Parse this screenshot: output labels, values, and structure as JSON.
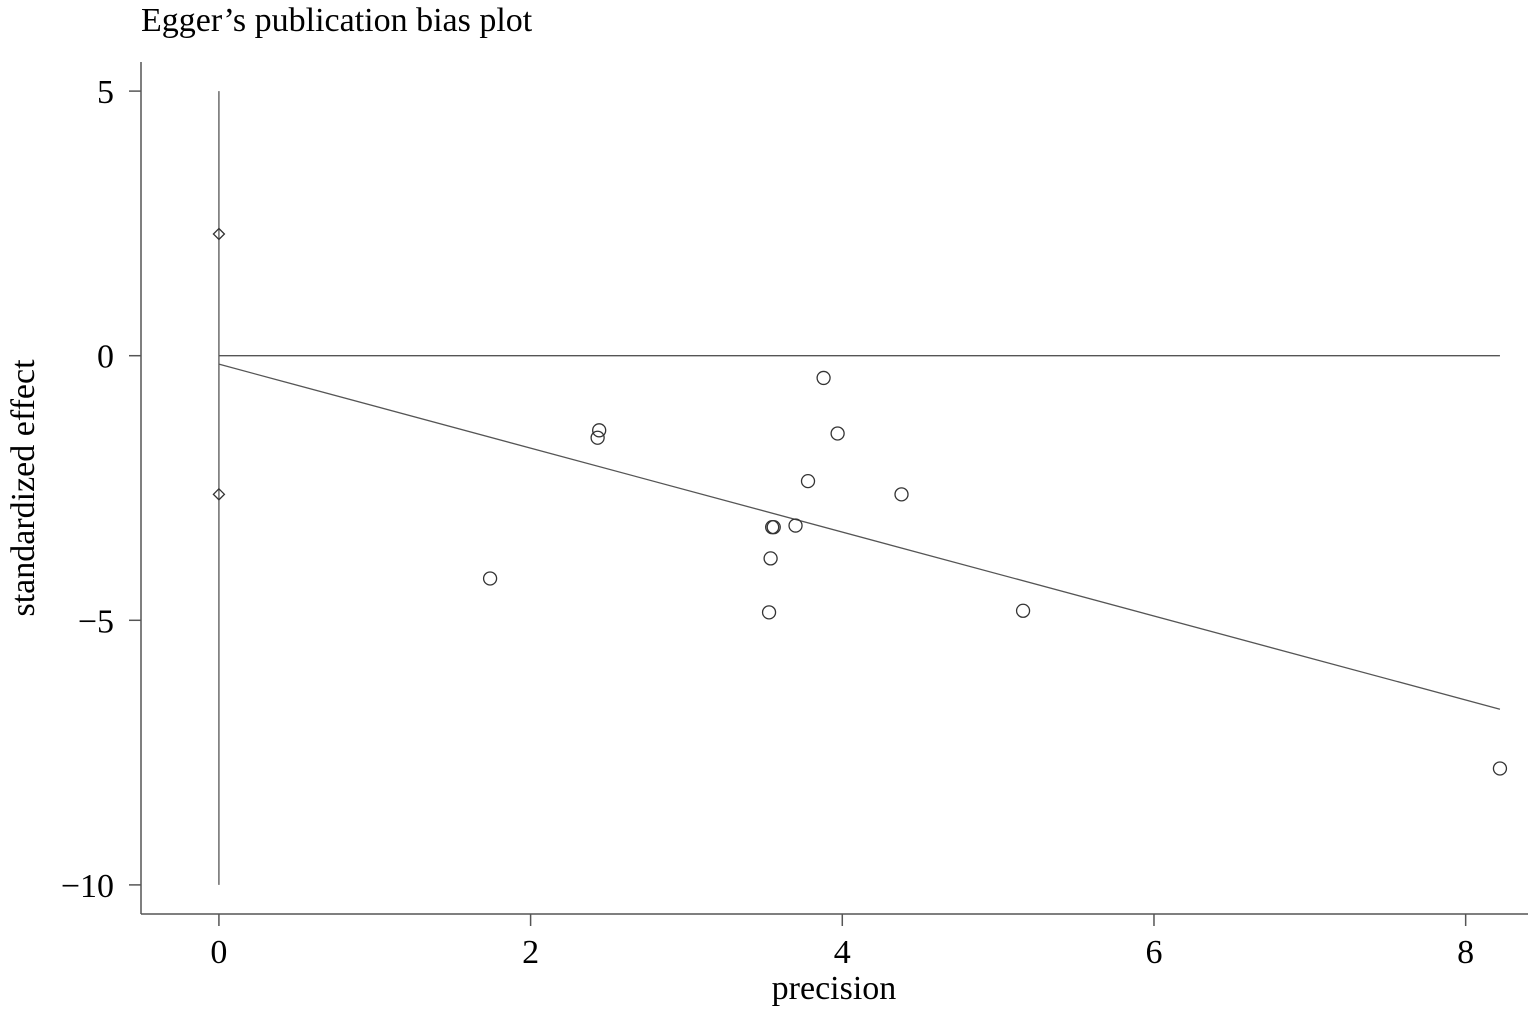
{
  "chart_data": {
    "type": "scatter",
    "title": "Egger’s publication bias plot",
    "xlabel": "precision",
    "ylabel": "standardized effect",
    "xlim": [
      -0.5,
      8.4
    ],
    "ylim": [
      -10.55,
      5.55
    ],
    "x_ticks": [
      0,
      2,
      4,
      6,
      8
    ],
    "y_ticks": [
      5,
      0,
      -5,
      -10
    ],
    "x_tick_labels": [
      "0",
      "2",
      "4",
      "6",
      "8"
    ],
    "y_tick_labels": [
      "5",
      "0",
      "−5",
      "−10"
    ],
    "grid": false,
    "legend": "none",
    "series": [
      {
        "marker": "circle",
        "points": [
          {
            "x": 1.74,
            "y": -4.21
          },
          {
            "x": 2.43,
            "y": -1.55
          },
          {
            "x": 2.44,
            "y": -1.41
          },
          {
            "x": 3.53,
            "y": -4.85
          },
          {
            "x": 3.54,
            "y": -3.83
          },
          {
            "x": 3.55,
            "y": -3.24
          },
          {
            "x": 3.56,
            "y": -3.24
          },
          {
            "x": 3.7,
            "y": -3.21
          },
          {
            "x": 3.78,
            "y": -2.37
          },
          {
            "x": 3.88,
            "y": -0.42
          },
          {
            "x": 3.97,
            "y": -1.47
          },
          {
            "x": 4.38,
            "y": -2.62
          },
          {
            "x": 5.16,
            "y": -4.82
          },
          {
            "x": 8.22,
            "y": -7.8
          }
        ]
      },
      {
        "marker": "diamond",
        "points": [
          {
            "x": 0,
            "y": 2.3
          },
          {
            "x": 0,
            "y": -2.62
          }
        ]
      }
    ],
    "reference_lines": {
      "horizontal_zero": {
        "y": 0,
        "x_from": 0,
        "x_to": 8.22
      },
      "vertical_ci": {
        "x": 0,
        "y_from": -10,
        "y_to": 5
      },
      "regression": {
        "x1": 0,
        "y1": -0.16,
        "x2": 8.22,
        "y2": -6.68
      }
    }
  }
}
